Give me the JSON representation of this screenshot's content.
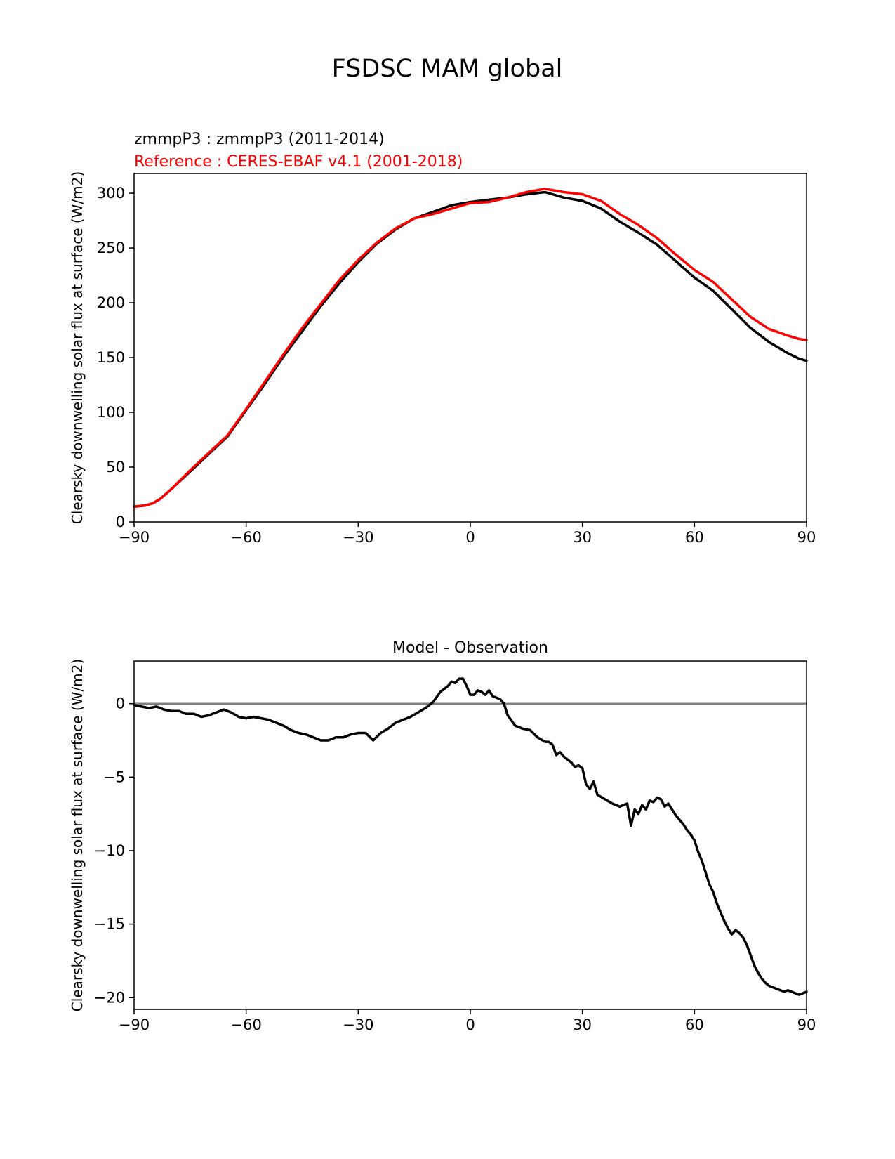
{
  "figure": {
    "title": "FSDSC MAM global"
  },
  "chart_data": [
    {
      "type": "line",
      "title_lines": [
        "zmmpP3 : zmmpP3 (2011-2014)",
        "Reference : CERES-EBAF v4.1 (2001-2018)"
      ],
      "title_colors": [
        "#000000",
        "#ff0000"
      ],
      "xlabel": "",
      "ylabel": "Clearsky downwelling solar flux at surface (W/m2)",
      "xlim": [
        -90,
        90
      ],
      "ylim": [
        0,
        318
      ],
      "xticks": [
        -90,
        -60,
        -30,
        0,
        30,
        60,
        90
      ],
      "xtick_labels": [
        "−90",
        "−60",
        "−30",
        "0",
        "30",
        "60",
        "90"
      ],
      "yticks": [
        0,
        50,
        100,
        150,
        200,
        250,
        300
      ],
      "ytick_labels": [
        "0",
        "50",
        "100",
        "150",
        "200",
        "250",
        "300"
      ],
      "grid": false,
      "series": [
        {
          "name": "zmmpP3 : zmmpP3 (2011-2014)",
          "color": "#000000",
          "x": [
            -90,
            -87,
            -85,
            -83,
            -80,
            -75,
            -70,
            -65,
            -60,
            -55,
            -50,
            -45,
            -40,
            -35,
            -30,
            -25,
            -20,
            -15,
            -10,
            -5,
            0,
            5,
            10,
            15,
            20,
            25,
            30,
            35,
            40,
            45,
            50,
            55,
            60,
            65,
            70,
            75,
            80,
            85,
            88,
            90
          ],
          "values": [
            14,
            15,
            17,
            21,
            30,
            46,
            62,
            78,
            102,
            126,
            151,
            174,
            197,
            218,
            237,
            254,
            267,
            277,
            283,
            289,
            292,
            294,
            296,
            299,
            301,
            296,
            293,
            286,
            274,
            264,
            253,
            238,
            223,
            211,
            194,
            177,
            164,
            154,
            149,
            147
          ]
        },
        {
          "name": "Reference : CERES-EBAF v4.1 (2001-2018)",
          "color": "#ff0000",
          "x": [
            -90,
            -87,
            -85,
            -83,
            -80,
            -75,
            -70,
            -65,
            -60,
            -55,
            -50,
            -45,
            -40,
            -35,
            -30,
            -25,
            -20,
            -15,
            -10,
            -5,
            0,
            5,
            10,
            15,
            20,
            25,
            30,
            35,
            40,
            45,
            50,
            55,
            60,
            65,
            70,
            75,
            80,
            85,
            88,
            90
          ],
          "values": [
            14,
            15,
            17,
            21,
            30,
            47,
            63,
            79,
            103,
            128,
            153,
            177,
            199,
            221,
            239,
            255,
            268,
            277,
            281,
            286,
            291,
            292,
            296,
            301,
            304,
            301,
            299,
            293,
            281,
            271,
            259,
            244,
            230,
            219,
            203,
            187,
            176,
            170,
            167,
            166
          ]
        }
      ]
    },
    {
      "type": "line",
      "title": "Model - Observation",
      "xlabel": "",
      "ylabel": "Clearsky downwelling solar flux at surface (W/m2)",
      "xlim": [
        -90,
        90
      ],
      "ylim": [
        -20.8,
        2.9
      ],
      "xticks": [
        -90,
        -60,
        -30,
        0,
        30,
        60,
        90
      ],
      "xtick_labels": [
        "−90",
        "−60",
        "−30",
        "0",
        "30",
        "60",
        "90"
      ],
      "yticks": [
        0,
        -5,
        -10,
        -15,
        -20
      ],
      "ytick_labels": [
        "0",
        "−5",
        "−10",
        "−15",
        "−20"
      ],
      "zero_line_color": "#808080",
      "grid": false,
      "series": [
        {
          "name": "",
          "color": "#000000",
          "x": [
            -90,
            -88,
            -86,
            -84,
            -82,
            -80,
            -78,
            -76,
            -74,
            -72,
            -70,
            -68,
            -66,
            -64,
            -62,
            -60,
            -58,
            -56,
            -54,
            -52,
            -50,
            -48,
            -46,
            -44,
            -42,
            -40,
            -38,
            -36,
            -34,
            -32,
            -30,
            -28,
            -26,
            -24,
            -22,
            -20,
            -18,
            -16,
            -14,
            -12,
            -10,
            -8,
            -6,
            -5,
            -4,
            -3,
            -2,
            -1,
            0,
            1,
            2,
            3,
            4,
            5,
            6,
            7,
            8,
            9,
            10,
            12,
            14,
            16,
            18,
            20,
            21,
            22,
            23,
            24,
            25,
            26,
            27,
            28,
            29,
            30,
            31,
            32,
            33,
            34,
            36,
            38,
            40,
            42,
            43,
            44,
            45,
            46,
            47,
            48,
            49,
            50,
            51,
            52,
            53,
            54,
            55,
            56,
            57,
            58,
            59,
            60,
            61,
            62,
            63,
            64,
            65,
            66,
            67,
            68,
            69,
            70,
            71,
            72,
            73,
            74,
            75,
            76,
            77,
            78,
            79,
            80,
            81,
            82,
            83,
            84,
            85,
            86,
            87,
            88,
            89,
            90
          ],
          "values": [
            -0.1,
            -0.2,
            -0.3,
            -0.2,
            -0.4,
            -0.5,
            -0.5,
            -0.7,
            -0.7,
            -0.9,
            -0.8,
            -0.6,
            -0.4,
            -0.6,
            -0.9,
            -1.0,
            -0.9,
            -1.0,
            -1.1,
            -1.3,
            -1.5,
            -1.8,
            -2.0,
            -2.1,
            -2.3,
            -2.5,
            -2.5,
            -2.3,
            -2.3,
            -2.1,
            -2.0,
            -2.0,
            -2.5,
            -2.0,
            -1.7,
            -1.3,
            -1.1,
            -0.9,
            -0.6,
            -0.3,
            0.1,
            0.8,
            1.2,
            1.5,
            1.4,
            1.7,
            1.7,
            1.2,
            0.6,
            0.6,
            0.9,
            0.8,
            0.6,
            0.9,
            0.5,
            0.4,
            0.3,
            0.0,
            -0.8,
            -1.5,
            -1.7,
            -1.8,
            -2.3,
            -2.6,
            -2.6,
            -2.8,
            -3.5,
            -3.3,
            -3.6,
            -3.8,
            -4.0,
            -4.3,
            -4.2,
            -4.4,
            -5.5,
            -5.8,
            -5.3,
            -6.2,
            -6.5,
            -6.8,
            -7.0,
            -6.8,
            -8.3,
            -7.2,
            -7.5,
            -6.9,
            -7.2,
            -6.6,
            -6.7,
            -6.4,
            -6.5,
            -7.0,
            -6.8,
            -7.2,
            -7.6,
            -7.9,
            -8.2,
            -8.6,
            -8.9,
            -9.3,
            -10.1,
            -10.7,
            -11.5,
            -12.3,
            -12.8,
            -13.6,
            -14.2,
            -14.8,
            -15.3,
            -15.7,
            -15.4,
            -15.6,
            -15.9,
            -16.4,
            -17.1,
            -17.8,
            -18.3,
            -18.7,
            -19.0,
            -19.2,
            -19.3,
            -19.4,
            -19.5,
            -19.6,
            -19.5,
            -19.6,
            -19.7,
            -19.8,
            -19.7,
            -19.6
          ]
        }
      ]
    }
  ]
}
